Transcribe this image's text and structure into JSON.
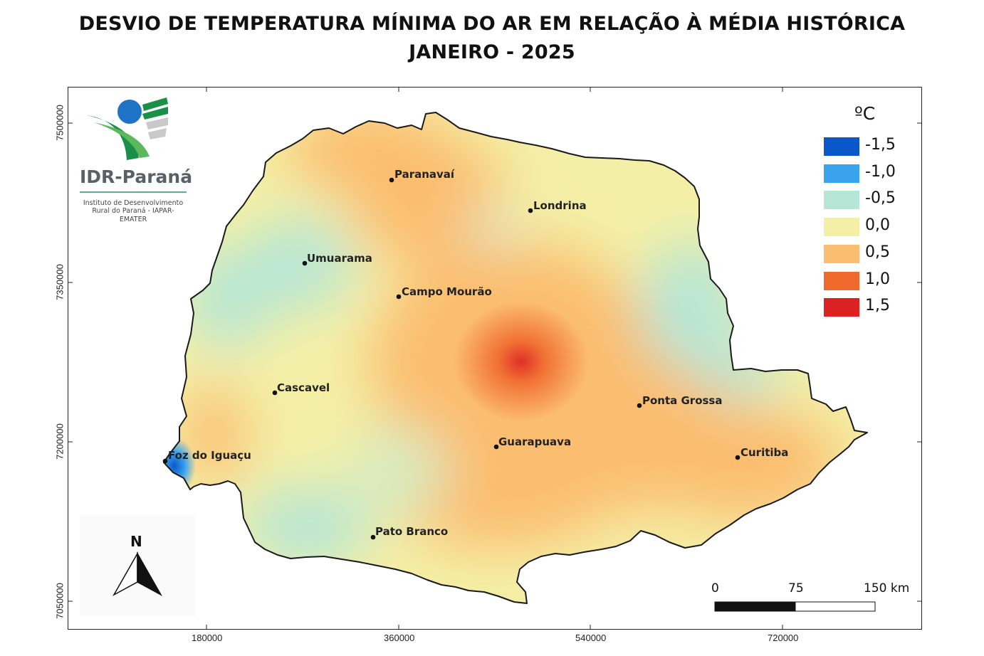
{
  "title": {
    "line1": "DESVIO DE TEMPERATURA MÍNIMA DO AR EM RELAÇÃO À MÉDIA HISTÓRICA",
    "line2": "JANEIRO - 2025"
  },
  "logo": {
    "name": "IDR-Paraná",
    "subtitle_line1": "Instituto de Desenvolvimento",
    "subtitle_line2": "Rural do Paraná - IAPAR-EMATER"
  },
  "legend": {
    "unit": "ºC",
    "items": [
      {
        "label": "-1,5",
        "color": "#0a57c9"
      },
      {
        "label": "-1,0",
        "color": "#3aa3ee"
      },
      {
        "label": "-0,5",
        "color": "#b6e6d6"
      },
      {
        "label": "0,0",
        "color": "#f4efa6"
      },
      {
        "label": "0,5",
        "color": "#fbbd6f"
      },
      {
        "label": "1,0",
        "color": "#f06a2e"
      },
      {
        "label": "1,5",
        "color": "#dd2020"
      }
    ]
  },
  "axes": {
    "x_ticks": [
      "180000",
      "360000",
      "540000",
      "720000"
    ],
    "y_ticks": [
      "7500000",
      "7350000",
      "7200000",
      "7050000"
    ]
  },
  "cities": [
    {
      "name": "Paranavaí"
    },
    {
      "name": "Londrina"
    },
    {
      "name": "Umuarama"
    },
    {
      "name": "Campo Mourão"
    },
    {
      "name": "Cascavel"
    },
    {
      "name": "Ponta Grossa"
    },
    {
      "name": "Guarapuava"
    },
    {
      "name": "Curitiba"
    },
    {
      "name": "Foz do Iguaçu"
    },
    {
      "name": "Pato Branco"
    }
  ],
  "scale_bar": {
    "labels": [
      "0",
      "75",
      "150 km"
    ]
  },
  "north_arrow": {
    "label": "N"
  }
}
